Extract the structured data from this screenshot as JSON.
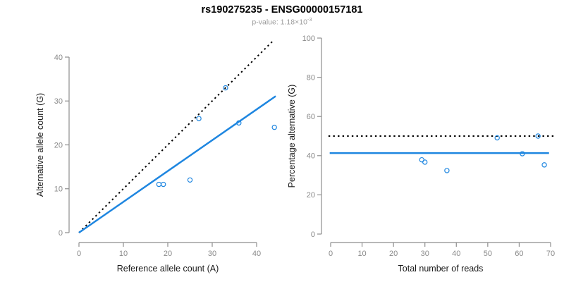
{
  "figure": {
    "title": "rs190275235 - ENSG00000157181",
    "subtitle": {
      "prefix": "p-value: 1.18×10",
      "exponent": "-3"
    }
  },
  "colors": {
    "accent_blue": "#1E86E0",
    "line_black": "#000000",
    "axis_gray": "#8E8E8E",
    "tick_label_gray": "#8A8A8A",
    "axis_title_black": "#1A1A1A",
    "subtitle_gray": "#9B9B9B"
  },
  "chart_data": [
    {
      "type": "scatter",
      "name": "allele-counts-scatter",
      "title": "",
      "xlabel": "Reference allele count (A)",
      "ylabel": "Alternative allele count (G)",
      "xlim": [
        0,
        44
      ],
      "ylim": [
        0,
        44
      ],
      "xticks": [
        0,
        10,
        20,
        30,
        40
      ],
      "yticks": [
        0,
        10,
        20,
        30,
        40
      ],
      "grid": false,
      "legend": null,
      "points": [
        [
          18,
          11
        ],
        [
          19,
          11
        ],
        [
          25,
          12
        ],
        [
          27,
          26
        ],
        [
          33,
          33
        ],
        [
          36,
          25
        ],
        [
          44,
          24
        ]
      ],
      "lines": [
        {
          "name": "identity-line",
          "style": "dotted",
          "color": "#000000",
          "from": [
            0,
            0
          ],
          "to": [
            43.7,
            43.7
          ]
        },
        {
          "name": "fit-line",
          "style": "solid",
          "color": "#1E86E0",
          "from": [
            0,
            0
          ],
          "to": [
            44.3,
            31.1
          ]
        }
      ]
    },
    {
      "type": "scatter",
      "name": "percentage-vs-reads-scatter",
      "title": "",
      "xlabel": "Total number of reads",
      "ylabel": "Percentage alternative (G)",
      "xlim": [
        0,
        71
      ],
      "ylim": [
        0,
        104
      ],
      "xticks": [
        0,
        10,
        20,
        30,
        40,
        50,
        60,
        70
      ],
      "yticks": [
        0,
        20,
        40,
        60,
        80,
        100
      ],
      "grid": false,
      "legend": null,
      "points": [
        [
          29,
          37.9
        ],
        [
          30,
          36.7
        ],
        [
          37,
          32.4
        ],
        [
          53,
          49.1
        ],
        [
          61,
          41
        ],
        [
          66,
          50
        ],
        [
          68,
          35.3
        ]
      ],
      "lines": [
        {
          "name": "fifty-percent-line",
          "style": "dotted",
          "color": "#000000",
          "from": [
            -0.7,
            50
          ],
          "to": [
            71.3,
            50
          ]
        },
        {
          "name": "mean-percentage-line",
          "style": "solid",
          "color": "#1E86E0",
          "from": [
            -0.3,
            41.3
          ],
          "to": [
            69.5,
            41.3
          ]
        }
      ]
    }
  ]
}
